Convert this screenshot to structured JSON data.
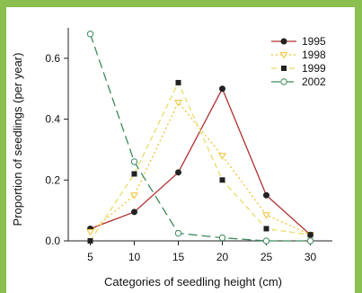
{
  "chart_data": {
    "type": "line",
    "title": "",
    "xlabel": "Categories of seedling height (cm)",
    "ylabel": "Proportion of seedlings (per year)",
    "x": [
      5,
      10,
      15,
      20,
      25,
      30
    ],
    "xticks": [
      "5",
      "10",
      "15",
      "20",
      "25",
      "30"
    ],
    "yticks": [
      "0.0",
      "0.2",
      "0.4",
      "0.6"
    ],
    "ytick_values": [
      0,
      0.2,
      0.4,
      0.6
    ],
    "xlim": [
      2.5,
      32.5
    ],
    "ylim": [
      0,
      0.7
    ],
    "grid": false,
    "legend": "top-right",
    "series": [
      {
        "name": "1995",
        "values": [
          0.04,
          0.095,
          0.225,
          0.5,
          0.15,
          0.02
        ],
        "color": "#b03030",
        "marker": "filled-circle",
        "dash": "solid"
      },
      {
        "name": "1998",
        "values": [
          0.03,
          0.15,
          0.455,
          0.28,
          0.085,
          0.02
        ],
        "color": "#f1c232",
        "marker": "open-triangle-down",
        "dash": "dotted"
      },
      {
        "name": "1999",
        "values": [
          0.0,
          0.22,
          0.52,
          0.2,
          0.04,
          0.02
        ],
        "color": "#e8dc6a",
        "marker": "filled-square",
        "dash": "dashed"
      },
      {
        "name": "2002",
        "values": [
          0.68,
          0.26,
          0.025,
          0.01,
          0.0,
          0.0
        ],
        "color": "#3d8a5c",
        "marker": "open-circle",
        "dash": "long-dash"
      }
    ]
  }
}
